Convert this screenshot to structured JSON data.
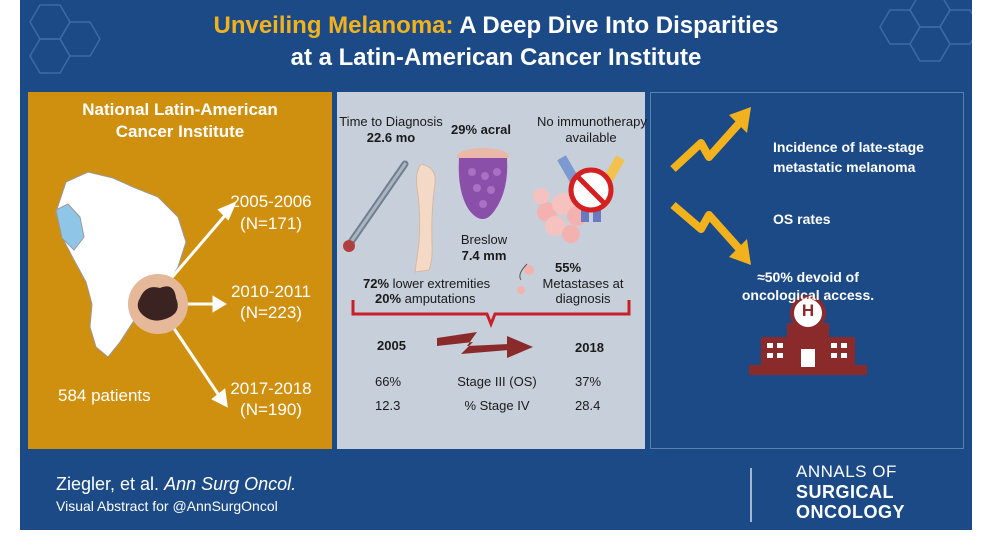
{
  "title": {
    "highlight": "Unveiling Melanoma:",
    "line1_rest": " A Deep Dive Into Disparities",
    "line2": "at a Latin-American Cancer Institute"
  },
  "left_panel": {
    "institute_line1": "National Latin-American",
    "institute_line2": "Cancer Institute",
    "patients": "584 patients",
    "cohorts": [
      {
        "years": "2005-2006",
        "n": "(N=171)"
      },
      {
        "years": "2010-2011",
        "n": "(N=223)"
      },
      {
        "years": "2017-2018",
        "n": "(N=190)"
      }
    ]
  },
  "middle_panel": {
    "time_to_diagnosis_label": "Time to Diagnosis",
    "time_to_diagnosis_value": "22.6 mo",
    "acral": "29% acral",
    "immuno_line1": "No immunotherapy",
    "immuno_line2": "available",
    "breslow_label": "Breslow",
    "breslow_value": "7.4 mm",
    "lower_ext_pct": "72%",
    "lower_ext_text": " lower extremities",
    "amput_pct": "20%",
    "amput_text": " amputations",
    "metastases_pct": "55%",
    "metastases_line1": "Metastases at",
    "metastases_line2": "diagnosis",
    "year_start": "2005",
    "year_end": "2018",
    "rows": [
      {
        "start": "66%",
        "label": "Stage III (OS)",
        "end": "37%"
      },
      {
        "start": "12.3",
        "label": "% Stage IV",
        "end": "28.4"
      }
    ]
  },
  "right_panel": {
    "trend1_line1": "Incidence of late-stage",
    "trend1_line2": "metastatic melanoma",
    "trend2": "OS rates",
    "access_line1": "≈50% devoid of",
    "access_line2": "oncological access.",
    "hospital_letter": "H"
  },
  "footer": {
    "authors": "Ziegler, et al. ",
    "journal": "Ann Surg Oncol.",
    "subline": "Visual Abstract for @AnnSurgOncol",
    "brand_line1": "ANNALS OF",
    "brand_line2": "SURGICAL",
    "brand_line3": "ONCOLOGY"
  },
  "colors": {
    "navy": "#1b4a86",
    "gold": "#d0900f",
    "accent_yellow": "#f2b21e",
    "gray_panel": "#c7d0da",
    "red_bracket": "#c8202a",
    "dark_red": "#8b2a2a"
  }
}
